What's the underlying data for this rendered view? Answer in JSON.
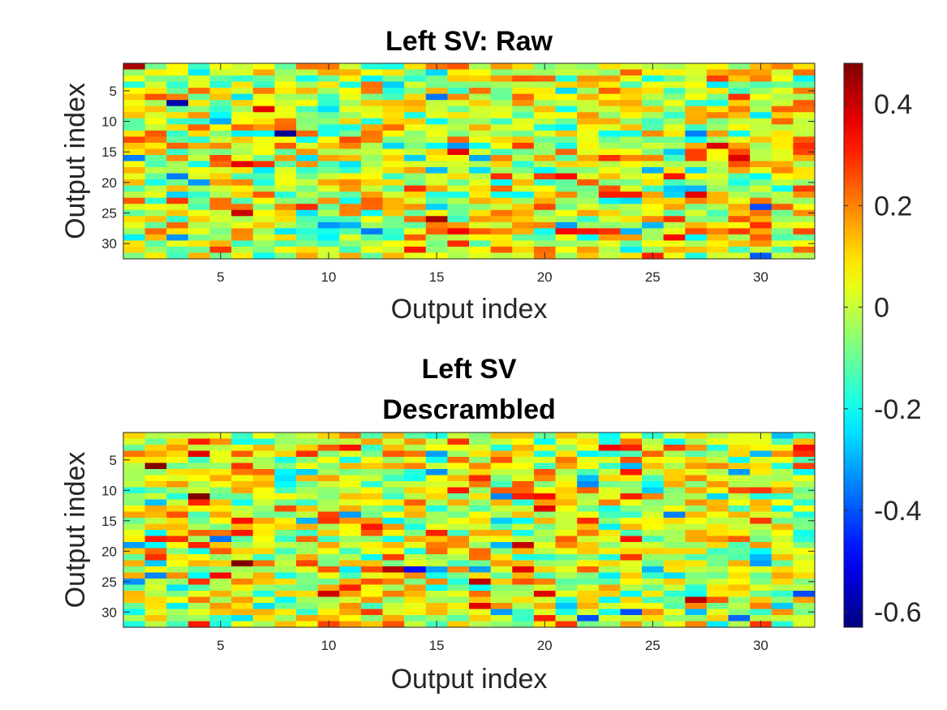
{
  "chart_data": [
    {
      "type": "heatmap",
      "title": [
        "Left SV: Raw"
      ],
      "xlabel": "Output index",
      "ylabel": "Output index",
      "rows": 32,
      "cols": 32,
      "x_ticks": [
        5,
        10,
        15,
        20,
        25,
        30
      ],
      "y_ticks": [
        5,
        10,
        15,
        20,
        25,
        30
      ],
      "x_tick_labels": [
        "5",
        "10",
        "15",
        "20",
        "25",
        "30"
      ],
      "y_tick_labels": [
        "5",
        "10",
        "15",
        "20",
        "25",
        "30"
      ],
      "x_range": [
        1,
        32
      ],
      "y_range": [
        1,
        32
      ],
      "y_direction": "reversed",
      "grid": false,
      "seed": 12345,
      "value_notes": "32x32 matrix of values roughly in [-0.6, 0.5]; individual cell values are not printed"
    },
    {
      "type": "heatmap",
      "title": [
        "Left SV",
        "Descrambled"
      ],
      "xlabel": "Output index",
      "ylabel": "Output index",
      "rows": 32,
      "cols": 32,
      "x_ticks": [
        5,
        10,
        15,
        20,
        25,
        30
      ],
      "y_ticks": [
        5,
        10,
        15,
        20,
        25,
        30
      ],
      "x_tick_labels": [
        "5",
        "10",
        "15",
        "20",
        "25",
        "30"
      ],
      "y_tick_labels": [
        "5",
        "10",
        "15",
        "20",
        "25",
        "30"
      ],
      "x_range": [
        1,
        32
      ],
      "y_range": [
        1,
        32
      ],
      "y_direction": "reversed",
      "grid": false,
      "seed": 67890,
      "value_notes": "32x32 matrix of values roughly in [-0.6, 0.5]; individual cell values are not printed"
    }
  ],
  "colorbar": {
    "colormap": "jet",
    "range": [
      -0.63,
      0.48
    ],
    "ticks": [
      0.4,
      0.2,
      0,
      -0.2,
      -0.4,
      -0.6
    ],
    "tick_labels": [
      "0.4",
      "0.2",
      "0",
      "-0.2",
      "-0.4",
      "-0.6"
    ],
    "position": "right"
  }
}
